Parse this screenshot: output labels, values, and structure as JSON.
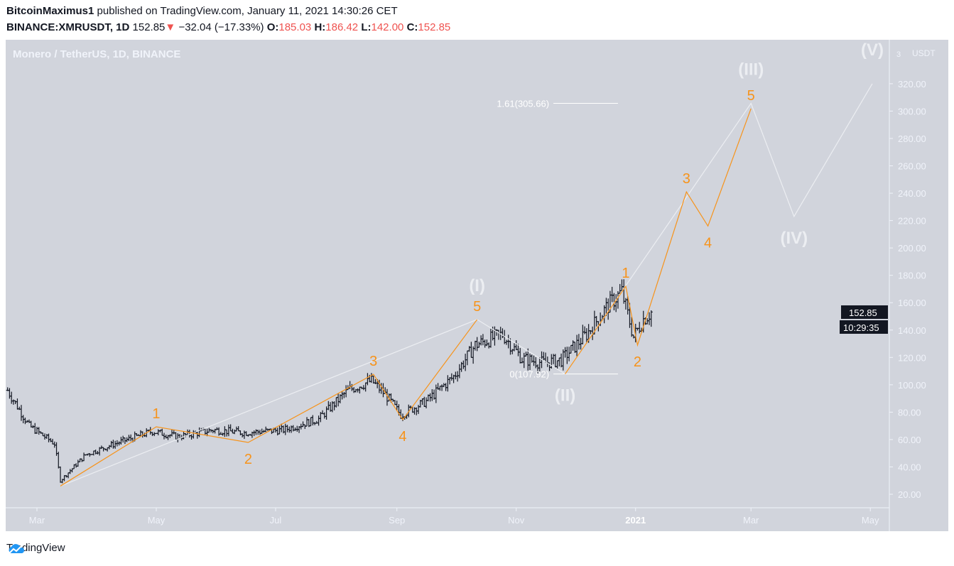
{
  "header": {
    "author": "BitcoinMaximus1",
    "published": "published on TradingView.com, January 11, 2021 14:30:26 CET",
    "symbol": "BINANCE:XMRUSDT, 1D",
    "last": "152.85",
    "change": "−32.04 (−17.33%)",
    "o_label": "O:",
    "o": "185.03",
    "h_label": "H:",
    "h": "186.42",
    "l_label": "L:",
    "l": "142.00",
    "c_label": "C:",
    "c": "152.85"
  },
  "footer": {
    "brand": "TradingView"
  },
  "colors": {
    "background": "#d1d4dc",
    "bars": "#131722",
    "wave_minor": "#f7931a",
    "wave_major": "#eceef2",
    "down": "#ef5350"
  },
  "chart_data": {
    "type": "ohlc-bar",
    "title": "Monero / TetherUS, 1D, BINANCE",
    "currency": "USDT",
    "ylim": [
      20,
      330
    ],
    "y_ticks": [
      "320.00",
      "300.00",
      "280.00",
      "260.00",
      "240.00",
      "220.00",
      "200.00",
      "180.00",
      "160.00",
      "140.00",
      "120.00",
      "100.00",
      "80.00",
      "60.00",
      "40.00",
      "20.00"
    ],
    "top_tick_partial": "3",
    "x_ticks": [
      {
        "label": "Mar",
        "date": "2020-03-01"
      },
      {
        "label": "May",
        "date": "2020-05-01"
      },
      {
        "label": "Jul",
        "date": "2020-07-01"
      },
      {
        "label": "Sep",
        "date": "2020-09-01"
      },
      {
        "label": "Nov",
        "date": "2020-11-01"
      },
      {
        "label": "2021",
        "date": "2021-01-01"
      },
      {
        "label": "Mar",
        "date": "2021-03-01"
      },
      {
        "label": "May",
        "date": "2021-05-01"
      }
    ],
    "xlim": [
      "2020-02-14",
      "2021-05-17"
    ],
    "price_path": [
      [
        "2020-02-15",
        96
      ],
      [
        "2020-02-26",
        70
      ],
      [
        "2020-03-10",
        57
      ],
      [
        "2020-03-13",
        30
      ],
      [
        "2020-03-26",
        49
      ],
      [
        "2020-04-10",
        57
      ],
      [
        "2020-04-29",
        66
      ],
      [
        "2020-05-12",
        62
      ],
      [
        "2020-05-30",
        67
      ],
      [
        "2020-06-15",
        65
      ],
      [
        "2020-07-05",
        67
      ],
      [
        "2020-07-23",
        75
      ],
      [
        "2020-08-07",
        96
      ],
      [
        "2020-08-19",
        103
      ],
      [
        "2020-08-26",
        93
      ],
      [
        "2020-09-03",
        78
      ],
      [
        "2020-09-16",
        88
      ],
      [
        "2020-09-30",
        106
      ],
      [
        "2020-10-11",
        129
      ],
      [
        "2020-10-25",
        137
      ],
      [
        "2020-11-04",
        119
      ],
      [
        "2020-11-15",
        116
      ],
      [
        "2020-11-24",
        118
      ],
      [
        "2020-12-07",
        137
      ],
      [
        "2020-12-18",
        158
      ],
      [
        "2020-12-25",
        168
      ],
      [
        "2020-12-31",
        135
      ],
      [
        "2021-01-05",
        148
      ],
      [
        "2021-01-09",
        153
      ]
    ],
    "last_price": {
      "value": 152.85,
      "label": "152.85",
      "countdown": "10:29:35"
    },
    "fib_levels": [
      {
        "label": "1.61(305.66)",
        "value": 305.66,
        "from": "2020-11-20",
        "to": "2020-12-23"
      },
      {
        "label": "0(107.92)",
        "value": 107.92,
        "from": "2020-11-20",
        "to": "2020-12-23"
      }
    ],
    "major_wave": [
      {
        "date": "2020-03-13",
        "price": 26,
        "label": ""
      },
      {
        "date": "2020-10-12",
        "price": 147.7,
        "label": "(I)",
        "pos": "above"
      },
      {
        "date": "2020-11-26",
        "price": 107.92,
        "label": "(II)",
        "pos": "below"
      },
      {
        "date": "2021-03-01",
        "price": 305.66,
        "label": "(III)",
        "pos": "above"
      },
      {
        "date": "2021-03-23",
        "price": 223,
        "label": "(IV)",
        "pos": "below"
      },
      {
        "date": "2021-05-02",
        "price": 320,
        "label": "(V)",
        "pos": "above"
      }
    ],
    "minor_waves": [
      [
        {
          "date": "2020-03-13",
          "price": 26,
          "label": ""
        },
        {
          "date": "2020-05-01",
          "price": 69.3,
          "label": "1",
          "pos": "above"
        },
        {
          "date": "2020-06-17",
          "price": 57.9,
          "label": "2",
          "pos": "below"
        },
        {
          "date": "2020-08-20",
          "price": 107.7,
          "label": "3",
          "pos": "above"
        },
        {
          "date": "2020-09-04",
          "price": 74.5,
          "label": "4",
          "pos": "below"
        },
        {
          "date": "2020-10-12",
          "price": 147.7,
          "label": "5",
          "pos": "above"
        }
      ],
      [
        {
          "date": "2020-11-26",
          "price": 107.92,
          "label": ""
        },
        {
          "date": "2020-12-27",
          "price": 172,
          "label": "1",
          "pos": "above"
        },
        {
          "date": "2021-01-02",
          "price": 129,
          "label": "2",
          "pos": "below"
        },
        {
          "date": "2021-01-27",
          "price": 241,
          "label": "3",
          "pos": "above"
        },
        {
          "date": "2021-02-07",
          "price": 216,
          "label": "4",
          "pos": "below"
        },
        {
          "date": "2021-03-01",
          "price": 301.8,
          "label": "5",
          "pos": "above"
        }
      ]
    ]
  }
}
